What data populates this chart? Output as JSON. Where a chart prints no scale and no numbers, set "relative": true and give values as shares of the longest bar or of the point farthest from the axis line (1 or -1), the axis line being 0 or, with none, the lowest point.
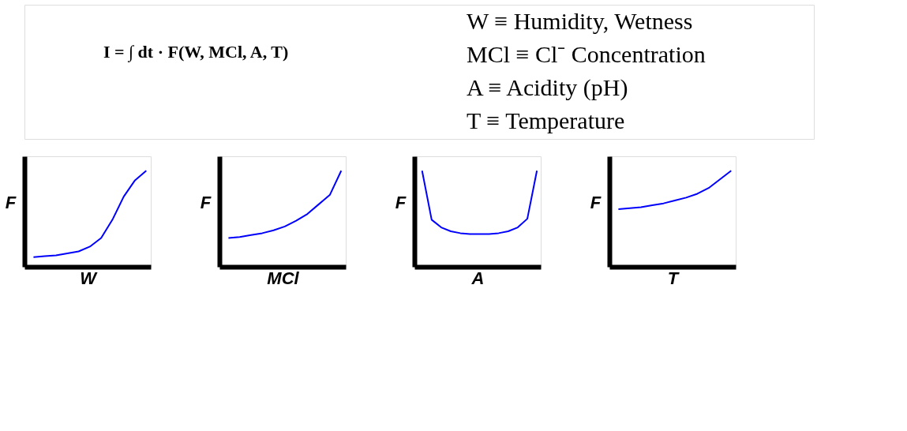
{
  "chart_data": [
    {
      "type": "other",
      "annotations": [
        "I = ∫ dt · F(W, MCl, A, T)",
        "W ≡ Humidity, Wetness",
        "MCl ≡ Cl⁻ Concentration",
        "A ≡ Acidity (pH)",
        "T ≡ Temperature"
      ]
    },
    {
      "type": "line",
      "relative": true,
      "tick_labels": false,
      "grid": false,
      "xlabel": "W",
      "ylabel": "F",
      "categories": [
        null,
        null,
        null,
        null,
        null,
        null,
        null,
        null,
        null,
        null,
        null
      ],
      "series": [
        {
          "color": "#0000ff",
          "values": [
            0.1,
            0.11,
            0.12,
            0.14,
            0.16,
            0.21,
            0.3,
            0.49,
            0.73,
            0.9,
            1.0
          ]
        }
      ]
    },
    {
      "type": "line",
      "relative": true,
      "tick_labels": false,
      "grid": false,
      "xlabel": "MCl",
      "ylabel": "F",
      "categories": [
        null,
        null,
        null,
        null,
        null,
        null,
        null,
        null,
        null,
        null,
        null
      ],
      "series": [
        {
          "color": "#0000ff",
          "values": [
            0.3,
            0.31,
            0.33,
            0.35,
            0.38,
            0.42,
            0.48,
            0.55,
            0.65,
            0.75,
            1.0
          ]
        }
      ]
    },
    {
      "type": "line",
      "relative": true,
      "tick_labels": false,
      "grid": false,
      "xlabel": "A",
      "ylabel": "F",
      "categories": [
        null,
        null,
        null,
        null,
        null,
        null,
        null,
        null,
        null,
        null,
        null,
        null,
        null
      ],
      "series": [
        {
          "color": "#0000ff",
          "values": [
            1.0,
            0.49,
            0.41,
            0.37,
            0.35,
            0.34,
            0.34,
            0.34,
            0.35,
            0.37,
            0.41,
            0.5,
            1.0
          ]
        }
      ]
    },
    {
      "type": "line",
      "relative": true,
      "tick_labels": false,
      "grid": false,
      "xlabel": "T",
      "ylabel": "F",
      "categories": [
        null,
        null,
        null,
        null,
        null,
        null,
        null,
        null,
        null,
        null,
        null
      ],
      "series": [
        {
          "color": "#0000ff",
          "values": [
            0.6,
            0.61,
            0.62,
            0.64,
            0.66,
            0.69,
            0.72,
            0.76,
            0.82,
            0.91,
            1.0
          ]
        }
      ]
    }
  ]
}
